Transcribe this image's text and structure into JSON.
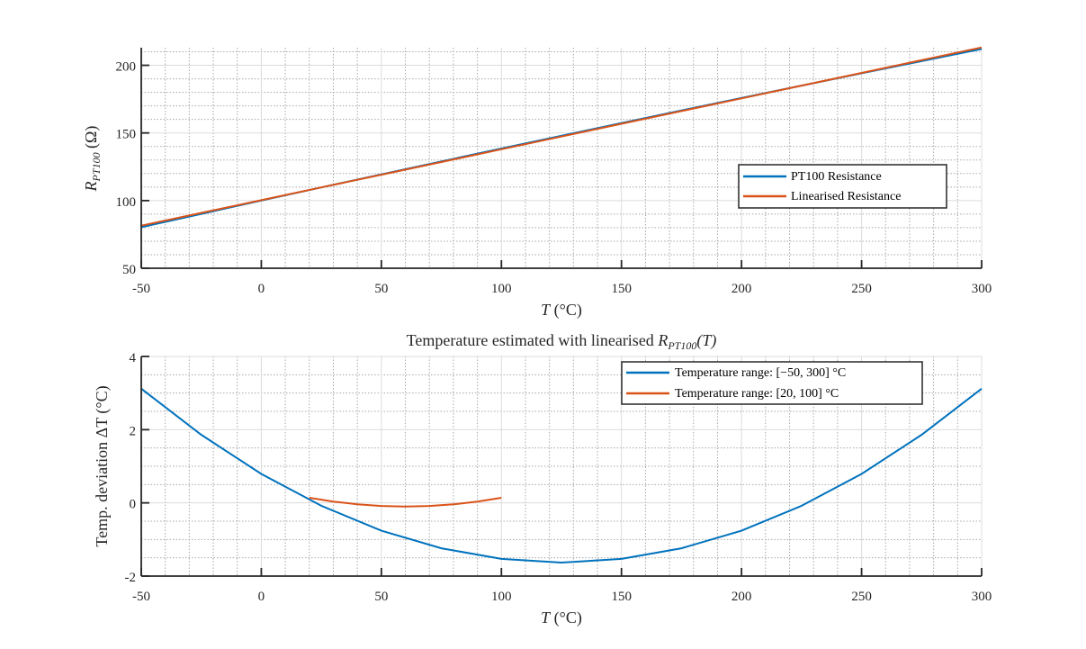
{
  "chart_data": [
    {
      "type": "line",
      "title": "",
      "xlabel": "T (°C)",
      "xlabel_parts": {
        "var": "T",
        "unit": " (°C)"
      },
      "ylabel": "R_PT100 (Ω)",
      "ylabel_parts": {
        "main": "R",
        "sub": "PT100",
        "unit": " (Ω)"
      },
      "xlim": [
        -50,
        300
      ],
      "ylim": [
        50,
        213
      ],
      "xticks": [
        -50,
        0,
        50,
        100,
        150,
        200,
        250,
        300
      ],
      "xtick_labels": [
        "-50",
        "0",
        "50",
        "100",
        "150",
        "200",
        "250",
        "300"
      ],
      "yticks": [
        50,
        100,
        150,
        200
      ],
      "ytick_labels": [
        "50",
        "100",
        "150",
        "200"
      ],
      "grid": true,
      "minor_grid": true,
      "legend_position": "right",
      "x": [
        -50,
        -25,
        0,
        25,
        50,
        75,
        100,
        125,
        150,
        175,
        200,
        225,
        250,
        275,
        300
      ],
      "series": [
        {
          "name": "PT100 Resistance",
          "color": "#0072BD",
          "values": [
            80.31,
            90.19,
            100,
            109.73,
            119.4,
            128.99,
            138.51,
            147.95,
            157.33,
            166.63,
            175.86,
            185.01,
            194.1,
            203.11,
            212.05
          ]
        },
        {
          "name": "Linearised Resistance",
          "color": "#D95319",
          "values": [
            81.5,
            90.9,
            100.31,
            109.72,
            119.13,
            128.53,
            137.94,
            147.35,
            156.76,
            166.16,
            175.57,
            184.98,
            194.39,
            203.79,
            213.2
          ]
        }
      ]
    },
    {
      "type": "line",
      "title": "Temperature estimated with linearised R_PT100(T)",
      "title_parts": {
        "main": "Temperature estimated with linearised ",
        "var": "R",
        "sub": "PT100",
        "suffix": "(T)"
      },
      "xlabel": "T (°C)",
      "xlabel_parts": {
        "var": "T",
        "unit": " (°C)"
      },
      "ylabel": "Temp. deviation ΔT (°C)",
      "xlim": [
        -50,
        300
      ],
      "ylim": [
        -2,
        4
      ],
      "xticks": [
        -50,
        0,
        50,
        100,
        150,
        200,
        250,
        300
      ],
      "xtick_labels": [
        "-50",
        "0",
        "50",
        "100",
        "150",
        "200",
        "250",
        "300"
      ],
      "yticks": [
        -2,
        0,
        2,
        4
      ],
      "ytick_labels": [
        "-2",
        "0",
        "2",
        "4"
      ],
      "grid": true,
      "minor_grid": true,
      "legend_position": "top-right",
      "series": [
        {
          "name": "Temperature range: [−50,  300] °C",
          "color": "#0072BD",
          "x": [
            -50,
            -25,
            0,
            25,
            50,
            75,
            100,
            125,
            150,
            175,
            200,
            225,
            250,
            275,
            300
          ],
          "values": [
            3.12,
            1.86,
            0.79,
            -0.08,
            -0.76,
            -1.24,
            -1.53,
            -1.63,
            -1.53,
            -1.24,
            -0.76,
            -0.08,
            0.79,
            1.86,
            3.12
          ]
        },
        {
          "name": "Temperature range: [20,  100] °C",
          "color": "#D95319",
          "x": [
            20,
            30,
            40,
            50,
            60,
            70,
            80,
            90,
            100
          ],
          "values": [
            0.14,
            0.035,
            -0.04,
            -0.085,
            -0.1,
            -0.085,
            -0.04,
            0.035,
            0.14
          ]
        }
      ]
    }
  ]
}
